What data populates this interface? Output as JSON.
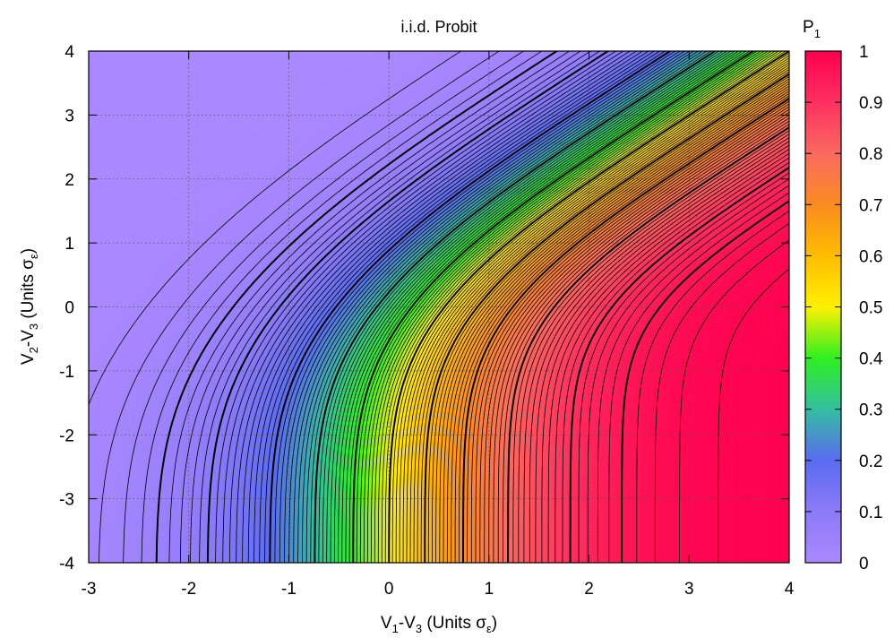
{
  "chart_data": {
    "type": "heatmap",
    "title": "i.i.d. Probit",
    "xlabel": {
      "main": "V",
      "sub1": "1",
      "mid": "-V",
      "sub2": "3",
      "units": " (Units σ",
      "eps": "ε",
      "close": ")"
    },
    "ylabel": {
      "main": "V",
      "sub1": "2",
      "mid": "-V",
      "sub2": "3",
      "units": " (Units σ",
      "eps": "ε",
      "close": ")"
    },
    "colorbar_label": {
      "main": "P",
      "sub": "1"
    },
    "xlim": [
      -3,
      4
    ],
    "ylim": [
      -4,
      4
    ],
    "zlim": [
      0,
      1
    ],
    "x_ticks": [
      "-3",
      "-2",
      "-1",
      "0",
      "1",
      "2",
      "3",
      "4"
    ],
    "y_ticks": [
      "-4",
      "-3",
      "-2",
      "-1",
      "0",
      "1",
      "2",
      "3",
      "4"
    ],
    "colorbar_ticks": [
      "0",
      "0.1",
      "0.2",
      "0.3",
      "0.4",
      "0.5",
      "0.6",
      "0.7",
      "0.8",
      "0.9",
      "1"
    ],
    "grid": true,
    "z": "P1 = probability that alternative 1 is chosen among 3 alternatives, i.i.d. standard normal errors",
    "contour_levels_thin": [
      0.01,
      0.02,
      0.03,
      0.04,
      0.06,
      0.07,
      0.08,
      0.09,
      0.11,
      0.12,
      0.13,
      0.14,
      0.15,
      0.16,
      0.17,
      0.18,
      0.19,
      0.21,
      0.22,
      0.23,
      0.24,
      0.25,
      0.26,
      0.27,
      0.28,
      0.29,
      0.31,
      0.32,
      0.33,
      0.34,
      0.35,
      0.36,
      0.37,
      0.38,
      0.39,
      0.41,
      0.42,
      0.43,
      0.44,
      0.45,
      0.46,
      0.47,
      0.48,
      0.49,
      0.51,
      0.52,
      0.53,
      0.54,
      0.55,
      0.56,
      0.57,
      0.58,
      0.59,
      0.61,
      0.62,
      0.63,
      0.64,
      0.65,
      0.66,
      0.67,
      0.68,
      0.69,
      0.71,
      0.72,
      0.73,
      0.74,
      0.75,
      0.76,
      0.77,
      0.78,
      0.79,
      0.81,
      0.82,
      0.83,
      0.84,
      0.85,
      0.86,
      0.87,
      0.88,
      0.89,
      0.91,
      0.92,
      0.93,
      0.94,
      0.96,
      0.97,
      0.98,
      0.99
    ],
    "contour_levels_thick": [
      0.05,
      0.1,
      0.2,
      0.3,
      0.4,
      0.5,
      0.6,
      0.7,
      0.8,
      0.9,
      0.95
    ],
    "palette": [
      {
        "v": 0.0,
        "color": "#aa88ff"
      },
      {
        "v": 0.1,
        "color": "#8c7af8"
      },
      {
        "v": 0.2,
        "color": "#5a6cf0"
      },
      {
        "v": 0.3,
        "color": "#33bfa0"
      },
      {
        "v": 0.4,
        "color": "#2ff020"
      },
      {
        "v": 0.5,
        "color": "#fff000"
      },
      {
        "v": 0.6,
        "color": "#ffbc00"
      },
      {
        "v": 0.7,
        "color": "#fa8c20"
      },
      {
        "v": 0.8,
        "color": "#fa6a60"
      },
      {
        "v": 0.9,
        "color": "#ff3060"
      },
      {
        "v": 1.0,
        "color": "#ff0050"
      }
    ]
  }
}
